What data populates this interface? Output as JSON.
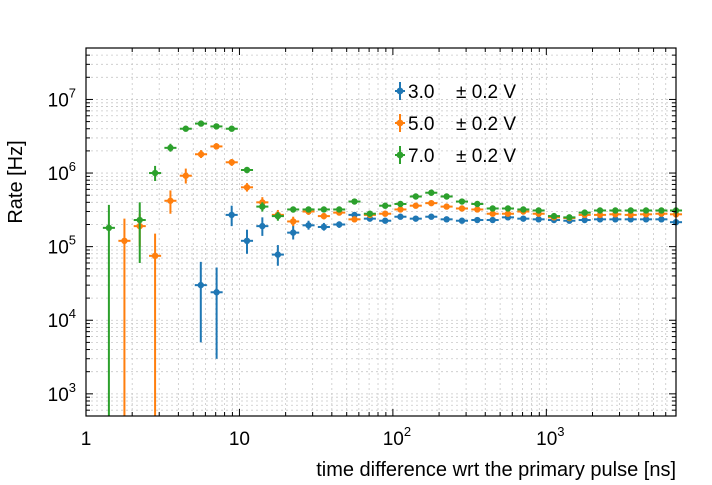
{
  "chart_data": {
    "type": "scatter",
    "xlabel": "time difference wrt the primary pulse [ns]",
    "ylabel": "Rate [Hz]",
    "xscale": "log",
    "yscale": "log",
    "xlim": [
      1,
      7000
    ],
    "ylim": [
      500,
      50000000
    ],
    "grid": true,
    "legend_placement": "top-center",
    "x_ticks": [
      {
        "value": 1,
        "base": "1",
        "exp": ""
      },
      {
        "value": 10,
        "base": "10",
        "exp": ""
      },
      {
        "value": 100,
        "base": "10",
        "exp": "2"
      },
      {
        "value": 1000,
        "base": "10",
        "exp": "3"
      }
    ],
    "y_ticks": [
      {
        "value": 1000,
        "base": "10",
        "exp": "3"
      },
      {
        "value": 10000,
        "base": "10",
        "exp": "4"
      },
      {
        "value": 100000,
        "base": "10",
        "exp": "5"
      },
      {
        "value": 1000000,
        "base": "10",
        "exp": "6"
      },
      {
        "value": 10000000,
        "base": "10",
        "exp": "7"
      }
    ],
    "series": [
      {
        "name": "3.0",
        "uncertainty": "± 0.2 V",
        "color": "#1f77b4",
        "points": [
          [
            5.6,
            30000,
            5000,
            62000
          ],
          [
            7.1,
            24000,
            3000,
            52000
          ],
          [
            8.9,
            270000,
            190000,
            360000
          ],
          [
            11.2,
            120000,
            80000,
            170000
          ],
          [
            14.1,
            190000,
            140000,
            250000
          ],
          [
            17.8,
            78000,
            55000,
            105000
          ],
          [
            22.4,
            155000,
            125000,
            195000
          ],
          [
            28.2,
            195000,
            170000,
            225000
          ],
          [
            35.5,
            185000,
            165000,
            210000
          ],
          [
            44.7,
            200000,
            180000,
            220000
          ],
          [
            56.2,
            270000,
            250000,
            290000
          ],
          [
            70.8,
            240000,
            225000,
            255000
          ],
          [
            89.1,
            225000,
            212000,
            238000
          ],
          [
            112,
            255000,
            243000,
            267000
          ],
          [
            141,
            240000,
            230000,
            250000
          ],
          [
            178,
            255000,
            245000,
            265000
          ],
          [
            224,
            235000,
            226000,
            244000
          ],
          [
            282,
            225000,
            217000,
            233000
          ],
          [
            355,
            230000,
            222000,
            238000
          ],
          [
            447,
            230000,
            223000,
            237000
          ],
          [
            562,
            250000,
            243000,
            257000
          ],
          [
            708,
            240000,
            234000,
            246000
          ],
          [
            891,
            235000,
            229000,
            241000
          ],
          [
            1122,
            230000,
            225000,
            235000
          ],
          [
            1413,
            225000,
            220000,
            230000
          ],
          [
            1778,
            230000,
            225000,
            235000
          ],
          [
            2239,
            235000,
            230000,
            240000
          ],
          [
            2818,
            235000,
            230000,
            240000
          ],
          [
            3548,
            235000,
            230000,
            240000
          ],
          [
            4467,
            235000,
            230000,
            240000
          ],
          [
            5623,
            235000,
            230000,
            240000
          ],
          [
            7000,
            215000,
            210000,
            220000
          ]
        ]
      },
      {
        "name": "5.0",
        "uncertainty": "± 0.2 V",
        "color": "#ff7f0e",
        "points": [
          [
            1.78,
            120000,
            500,
            240000
          ],
          [
            2.24,
            190000,
            100000,
            280000
          ],
          [
            2.82,
            75000,
            500,
            150000
          ],
          [
            3.55,
            420000,
            280000,
            580000
          ],
          [
            4.47,
            920000,
            720000,
            1150000
          ],
          [
            5.62,
            1800000,
            1600000,
            2050000
          ],
          [
            7.08,
            2300000,
            2100000,
            2550000
          ],
          [
            8.91,
            1400000,
            1250000,
            1550000
          ],
          [
            11.2,
            640000,
            560000,
            730000
          ],
          [
            14.1,
            400000,
            340000,
            470000
          ],
          [
            17.8,
            270000,
            230000,
            315000
          ],
          [
            22.4,
            220000,
            190000,
            255000
          ],
          [
            28.2,
            300000,
            270000,
            330000
          ],
          [
            35.5,
            260000,
            235000,
            285000
          ],
          [
            44.7,
            290000,
            265000,
            315000
          ],
          [
            56.2,
            235000,
            215000,
            255000
          ],
          [
            70.8,
            270000,
            250000,
            290000
          ],
          [
            89.1,
            280000,
            262000,
            298000
          ],
          [
            112,
            320000,
            302000,
            338000
          ],
          [
            141,
            360000,
            342000,
            378000
          ],
          [
            178,
            390000,
            372000,
            408000
          ],
          [
            224,
            350000,
            335000,
            365000
          ],
          [
            282,
            330000,
            316000,
            344000
          ],
          [
            355,
            320000,
            307000,
            333000
          ],
          [
            447,
            280000,
            270000,
            290000
          ],
          [
            562,
            280000,
            270000,
            290000
          ],
          [
            708,
            300000,
            290000,
            310000
          ],
          [
            891,
            280000,
            271000,
            289000
          ],
          [
            1122,
            250000,
            242000,
            258000
          ],
          [
            1413,
            245000,
            238000,
            252000
          ],
          [
            1778,
            270000,
            263000,
            277000
          ],
          [
            2239,
            270000,
            263000,
            277000
          ],
          [
            2818,
            275000,
            268000,
            282000
          ],
          [
            3548,
            270000,
            263000,
            277000
          ],
          [
            4467,
            275000,
            268000,
            282000
          ],
          [
            5623,
            280000,
            273000,
            287000
          ],
          [
            7000,
            275000,
            268000,
            282000
          ]
        ]
      },
      {
        "name": "7.0",
        "uncertainty": "± 0.2 V",
        "color": "#2ca02c",
        "points": [
          [
            1.41,
            180000,
            500,
            370000
          ],
          [
            2.24,
            230000,
            60000,
            400000
          ],
          [
            2.82,
            1000000,
            780000,
            1250000
          ],
          [
            3.55,
            2200000,
            1950000,
            2500000
          ],
          [
            4.47,
            4000000,
            3750000,
            4300000
          ],
          [
            5.62,
            4700000,
            4450000,
            4950000
          ],
          [
            7.08,
            4300000,
            4050000,
            4550000
          ],
          [
            8.91,
            4000000,
            3750000,
            4250000
          ],
          [
            11.2,
            1100000,
            1000000,
            1200000
          ],
          [
            14.1,
            350000,
            300000,
            400000
          ],
          [
            17.8,
            260000,
            225000,
            295000
          ],
          [
            22.4,
            320000,
            290000,
            350000
          ],
          [
            28.2,
            320000,
            295000,
            345000
          ],
          [
            35.5,
            320000,
            295000,
            345000
          ],
          [
            44.7,
            320000,
            297000,
            343000
          ],
          [
            56.2,
            410000,
            385000,
            435000
          ],
          [
            70.8,
            280000,
            262000,
            298000
          ],
          [
            89.1,
            360000,
            340000,
            380000
          ],
          [
            112,
            380000,
            360000,
            400000
          ],
          [
            141,
            480000,
            458000,
            502000
          ],
          [
            178,
            540000,
            516000,
            564000
          ],
          [
            224,
            480000,
            460000,
            500000
          ],
          [
            282,
            410000,
            394000,
            426000
          ],
          [
            355,
            380000,
            365000,
            395000
          ],
          [
            447,
            330000,
            318000,
            342000
          ],
          [
            562,
            330000,
            318000,
            342000
          ],
          [
            708,
            320000,
            309000,
            331000
          ],
          [
            891,
            310000,
            300000,
            320000
          ],
          [
            1122,
            260000,
            252000,
            268000
          ],
          [
            1413,
            250000,
            243000,
            257000
          ],
          [
            1778,
            290000,
            282000,
            298000
          ],
          [
            2239,
            310000,
            302000,
            318000
          ],
          [
            2818,
            310000,
            302000,
            318000
          ],
          [
            3548,
            310000,
            302000,
            318000
          ],
          [
            4467,
            310000,
            302000,
            318000
          ],
          [
            5623,
            310000,
            302000,
            318000
          ],
          [
            7000,
            310000,
            302000,
            318000
          ]
        ]
      }
    ]
  }
}
